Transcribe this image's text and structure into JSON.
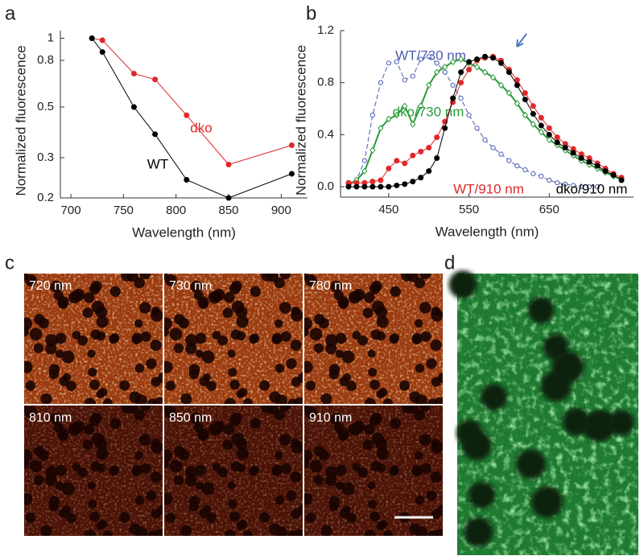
{
  "panel_labels": [
    "a",
    "b",
    "c",
    "d"
  ],
  "chart_data": [
    {
      "type": "line",
      "ylabel": "Normalized fluorescence",
      "xlabel": "Wavelength (nm)",
      "log_y": true,
      "xlim": [
        690,
        925
      ],
      "ylim": [
        0.2,
        1.08
      ],
      "xticks": [
        700,
        750,
        800,
        850,
        900
      ],
      "yticks": [
        0.2,
        0.3,
        0.5,
        0.8,
        1
      ],
      "x": [
        720,
        730,
        760,
        780,
        810,
        850,
        910
      ],
      "series": [
        {
          "name": "dko",
          "color": "#e0282a",
          "marker": "circle",
          "filled": true,
          "dash": false,
          "values": [
            1.0,
            0.98,
            0.7,
            0.66,
            0.46,
            0.28,
            0.34
          ]
        },
        {
          "name": "WT",
          "color": "#000000",
          "marker": "circle",
          "filled": true,
          "dash": false,
          "values": [
            1.0,
            0.87,
            0.5,
            0.38,
            0.24,
            0.2,
            0.255
          ]
        }
      ]
    },
    {
      "type": "line",
      "ylabel": "Normalized fluorescence",
      "xlabel": "Wavelength (nm)",
      "log_y": false,
      "xlim": [
        390,
        755
      ],
      "ylim": [
        -0.08,
        1.2
      ],
      "xticks": [
        450,
        550,
        650
      ],
      "yticks": [
        {
          "value": 0,
          "label": "0.0"
        },
        0.4,
        0.8,
        1.2
      ],
      "x": [
        400,
        410,
        420,
        430,
        440,
        450,
        460,
        470,
        480,
        490,
        500,
        510,
        520,
        530,
        540,
        550,
        560,
        570,
        580,
        590,
        600,
        610,
        620,
        630,
        640,
        650,
        660,
        670,
        680,
        690,
        700,
        710,
        720,
        730,
        740
      ],
      "series": [
        {
          "name": "WT/730 nm",
          "color": "#4a5cb0",
          "marker": "circle",
          "filled": false,
          "dash": true,
          "values": [
            0.0,
            0.05,
            0.2,
            0.55,
            0.8,
            0.95,
            0.96,
            0.82,
            0.85,
            0.98,
            1.0,
            0.95,
            0.88,
            0.78,
            0.68,
            0.55,
            0.45,
            0.36,
            0.3,
            0.25,
            0.2,
            0.16,
            0.13,
            0.1,
            0.08,
            0.05,
            0.03,
            0.02,
            0.01,
            0.0,
            0.0,
            0.0,
            null,
            null,
            null
          ]
        },
        {
          "name": "dko/730 nm",
          "color": "#2a9a3a",
          "marker": "diamond",
          "filled": false,
          "dash": false,
          "values": [
            0.02,
            0.05,
            0.12,
            0.28,
            0.45,
            0.52,
            0.55,
            0.62,
            0.48,
            0.62,
            0.78,
            0.88,
            0.92,
            0.96,
            0.98,
            0.95,
            0.92,
            0.88,
            0.84,
            0.78,
            0.72,
            0.64,
            0.55,
            0.48,
            0.42,
            0.36,
            0.32,
            0.28,
            0.24,
            0.2,
            0.17,
            0.14,
            0.11,
            0.08,
            0.06
          ]
        },
        {
          "name": "WT/910 nm",
          "color": "#e0282a",
          "marker": "circle",
          "filled": true,
          "dash": false,
          "values": [
            0.03,
            0.03,
            0.03,
            0.04,
            0.05,
            0.14,
            0.2,
            0.18,
            0.24,
            0.27,
            0.3,
            0.38,
            0.5,
            0.65,
            0.8,
            0.9,
            0.97,
            0.99,
            1.0,
            0.97,
            0.9,
            0.82,
            0.72,
            0.62,
            0.53,
            0.45,
            0.38,
            0.33,
            0.29,
            0.25,
            0.22,
            0.18,
            0.14,
            0.1,
            0.07
          ]
        },
        {
          "name": "dko/910 nm",
          "color": "#000000",
          "marker": "circle",
          "filled": true,
          "dash": false,
          "values": [
            0,
            0,
            0,
            0,
            0,
            0,
            0.01,
            0.02,
            0.04,
            0.07,
            0.12,
            0.22,
            0.45,
            0.68,
            0.88,
            0.96,
            0.98,
            1.0,
            0.99,
            0.95,
            0.88,
            0.78,
            0.67,
            0.56,
            0.47,
            0.4,
            0.34,
            0.3,
            0.26,
            0.22,
            0.19,
            0.16,
            0.12,
            0.09,
            0.05
          ]
        }
      ]
    }
  ],
  "images": {
    "tiles": [
      "720 nm",
      "730 nm",
      "780 nm",
      "810 nm",
      "850 nm",
      "910 nm"
    ]
  }
}
